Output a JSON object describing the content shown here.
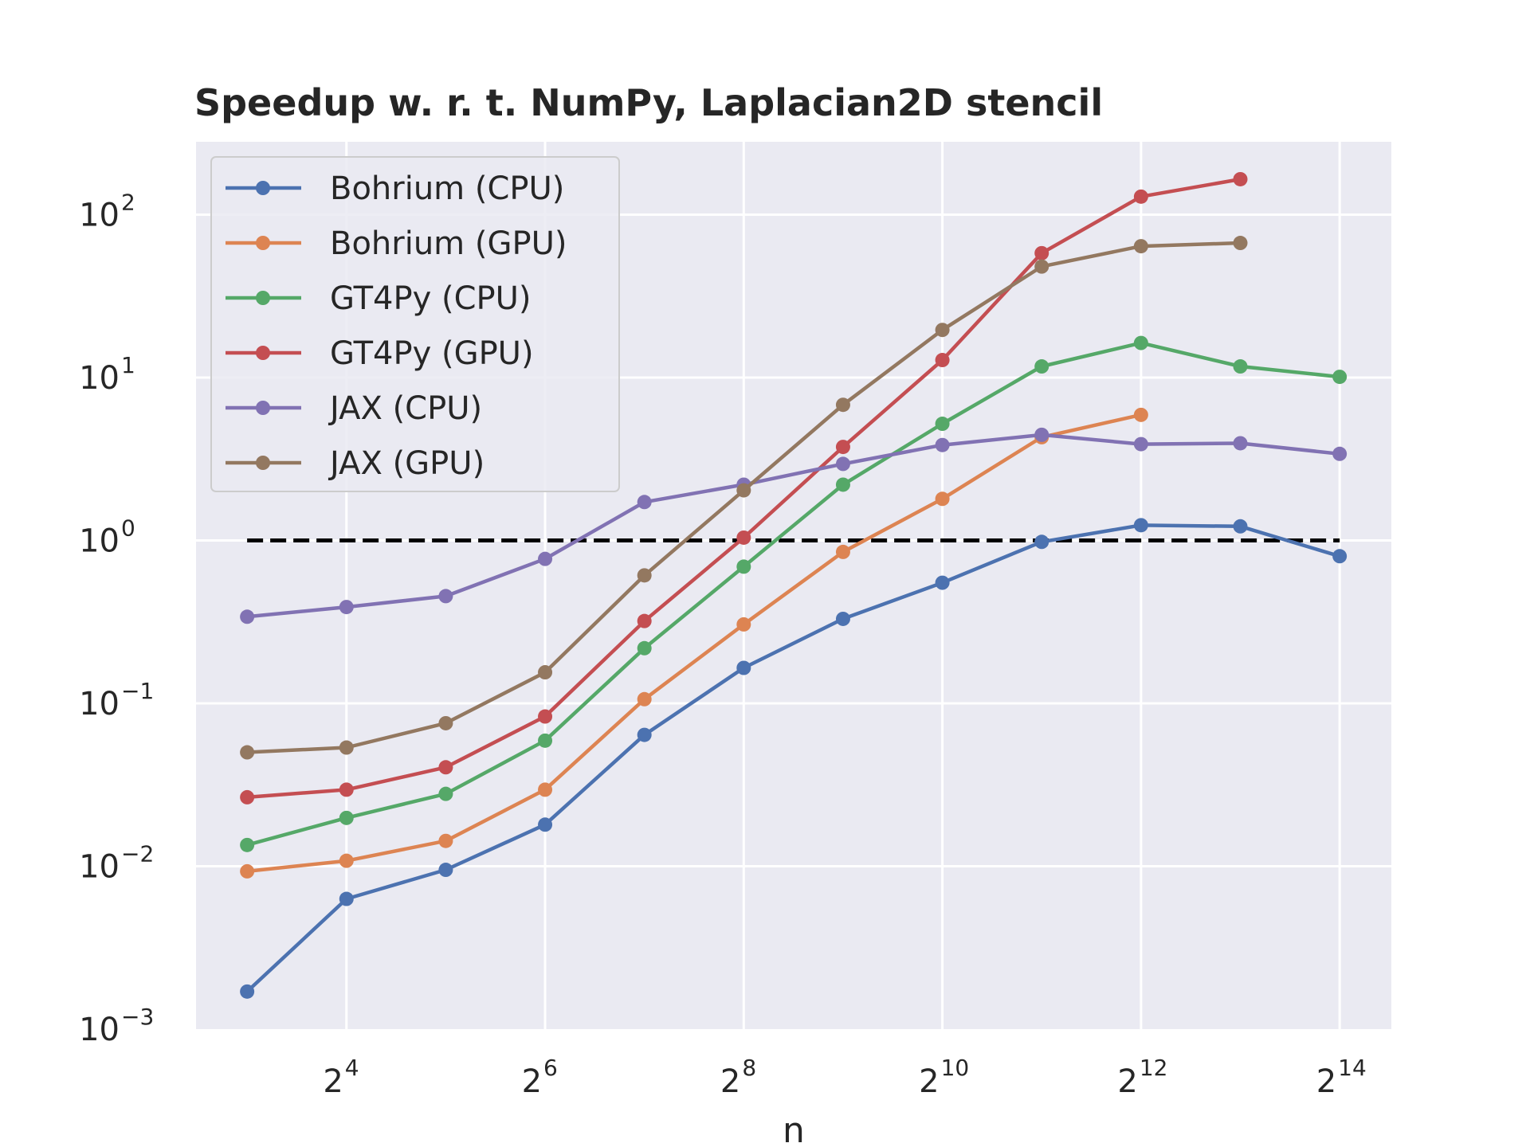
{
  "chart_data": {
    "type": "line",
    "title": "Speedup w. r. t.  NumPy,  Laplacian2D stencil",
    "xlabel": "n",
    "ylabel": "",
    "x_scale": "log2",
    "y_scale": "log10",
    "x": [
      8,
      16,
      32,
      64,
      128,
      256,
      512,
      1024,
      2048,
      4096,
      8192,
      16384
    ],
    "xlim": [
      5.6,
      23500
    ],
    "ylim": [
      0.001,
      280
    ],
    "x_ticks": [
      {
        "value": 16,
        "base": "2",
        "exp": "4"
      },
      {
        "value": 64,
        "base": "2",
        "exp": "6"
      },
      {
        "value": 256,
        "base": "2",
        "exp": "8"
      },
      {
        "value": 1024,
        "base": "2",
        "exp": "10"
      },
      {
        "value": 4096,
        "base": "2",
        "exp": "12"
      },
      {
        "value": 16384,
        "base": "2",
        "exp": "14"
      }
    ],
    "y_ticks": [
      {
        "value": 0.001,
        "base": "10",
        "exp": "−3"
      },
      {
        "value": 0.01,
        "base": "10",
        "exp": "−2"
      },
      {
        "value": 0.1,
        "base": "10",
        "exp": "−1"
      },
      {
        "value": 1,
        "base": "10",
        "exp": "0"
      },
      {
        "value": 10,
        "base": "10",
        "exp": "1"
      },
      {
        "value": 100,
        "base": "10",
        "exp": "2"
      }
    ],
    "grid": true,
    "legend_position": "top-left",
    "reference_line": {
      "y": 1,
      "x_from": 8,
      "x_to": 16384,
      "style": "dashed",
      "color": "#000000"
    },
    "series": [
      {
        "name": "Bohrium (CPU)",
        "color": "#4c72b0",
        "values": [
          0.0017,
          0.0063,
          0.0095,
          0.018,
          0.064,
          0.165,
          0.33,
          0.55,
          0.98,
          1.24,
          1.22,
          0.8
        ]
      },
      {
        "name": "Bohrium (GPU)",
        "color": "#dd8452",
        "values": [
          0.0093,
          0.0108,
          0.0143,
          0.0295,
          0.106,
          0.305,
          0.85,
          1.8,
          4.3,
          5.9,
          null,
          null
        ]
      },
      {
        "name": "GT4Py (CPU)",
        "color": "#55a868",
        "values": [
          0.0135,
          0.0198,
          0.0278,
          0.059,
          0.218,
          0.69,
          2.2,
          5.2,
          11.7,
          16.3,
          11.7,
          10.1
        ]
      },
      {
        "name": "GT4Py (GPU)",
        "color": "#c44e52",
        "values": [
          0.0265,
          0.0295,
          0.0405,
          0.083,
          0.32,
          1.04,
          3.75,
          12.8,
          58,
          129,
          165,
          null
        ]
      },
      {
        "name": "JAX (CPU)",
        "color": "#8172b3",
        "values": [
          0.34,
          0.39,
          0.455,
          0.77,
          1.72,
          2.2,
          2.95,
          3.85,
          4.45,
          3.9,
          3.95,
          3.4
        ]
      },
      {
        "name": "JAX (GPU)",
        "color": "#937860",
        "values": [
          0.05,
          0.0535,
          0.0755,
          0.155,
          0.61,
          2.03,
          6.8,
          19.6,
          48,
          64,
          67,
          null
        ]
      }
    ]
  }
}
